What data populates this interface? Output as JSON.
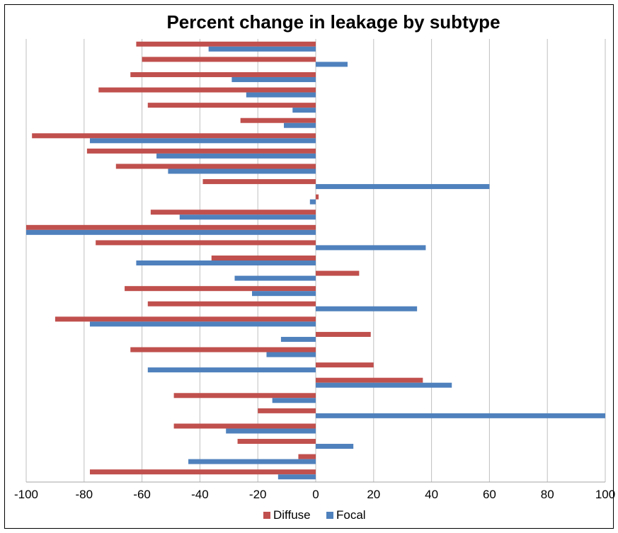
{
  "chart_data": {
    "type": "bar",
    "orientation": "horizontal",
    "title": "Percent change in leakage by subtype",
    "xlabel": "",
    "ylabel": "",
    "xlim": [
      -100,
      100
    ],
    "xticks": [
      -100,
      -80,
      -60,
      -40,
      -20,
      0,
      20,
      40,
      60,
      80,
      100
    ],
    "grid": true,
    "legend_position": "bottom",
    "colors": {
      "diffuse": "#c0504d",
      "focal": "#4f81bd"
    },
    "series": [
      {
        "name": "Diffuse",
        "values": [
          -62,
          -60,
          -64,
          -75,
          -58,
          -26,
          -98,
          -79,
          -69,
          -39,
          1,
          -57,
          -100,
          -76,
          -36,
          15,
          -66,
          -58,
          -90,
          19,
          -64,
          20,
          37,
          -49,
          -20,
          -49,
          -27,
          -6,
          -78
        ]
      },
      {
        "name": "Focal",
        "values": [
          -37,
          11,
          -29,
          -24,
          -8,
          -11,
          -78,
          -55,
          -51,
          60,
          -2,
          -47,
          -100,
          38,
          -62,
          -28,
          -22,
          35,
          -78,
          -12,
          -17,
          -58,
          47,
          -15,
          100,
          -31,
          13,
          -44,
          -13
        ]
      }
    ]
  }
}
